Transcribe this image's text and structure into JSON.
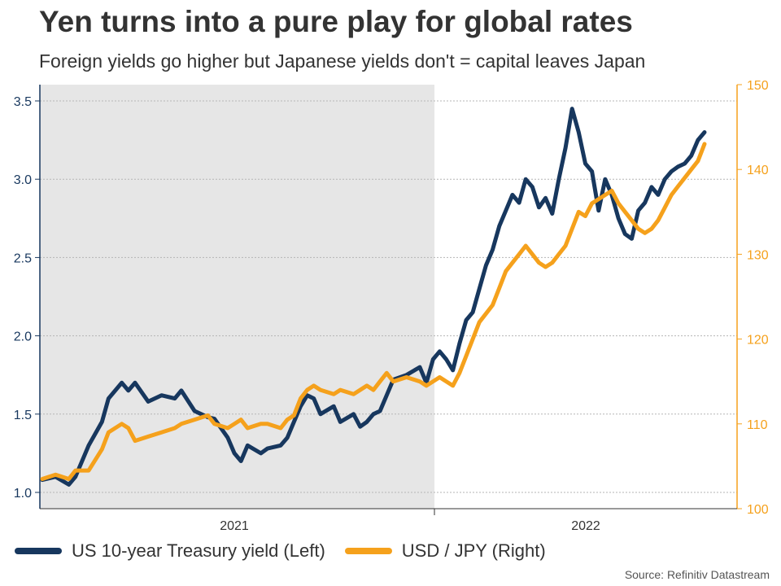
{
  "title": "Yen turns into a pure play for global rates",
  "subtitle": "Foreign yields go higher but Japanese yields don't = capital leaves Japan",
  "source": "Source: Refinitiv Datastream",
  "chart_data": {
    "type": "line",
    "title": "Yen turns into a pure play for global rates",
    "xlabel": "",
    "x_ticks": [
      "2021",
      "2022"
    ],
    "y_left": {
      "label": "US 10-year Treasury yield",
      "ylim": [
        1.0,
        3.5
      ],
      "ticks": [
        1.0,
        1.5,
        2.0,
        2.5,
        3.0,
        3.5
      ],
      "color": "#17375e"
    },
    "y_right": {
      "label": "USD / JPY",
      "ylim": [
        100,
        150
      ],
      "ticks": [
        100,
        110,
        120,
        130,
        140,
        150
      ],
      "color": "#f5a11c"
    },
    "grid": true,
    "shaded_region": {
      "from": "2020-11",
      "to": "2021-11",
      "color": "#e6e6e6"
    },
    "series": [
      {
        "name": "US 10-year Treasury yield (Left)",
        "axis": "left",
        "color": "#17375e",
        "x": [
          0.0,
          0.02,
          0.04,
          0.05,
          0.07,
          0.09,
          0.1,
          0.12,
          0.13,
          0.14,
          0.16,
          0.18,
          0.2,
          0.21,
          0.23,
          0.25,
          0.26,
          0.28,
          0.29,
          0.3,
          0.31,
          0.33,
          0.34,
          0.36,
          0.37,
          0.38,
          0.39,
          0.4,
          0.41,
          0.42,
          0.44,
          0.45,
          0.47,
          0.48,
          0.49,
          0.5,
          0.51,
          0.52,
          0.53,
          0.55,
          0.57,
          0.58,
          0.59,
          0.6,
          0.61,
          0.62,
          0.63,
          0.64,
          0.65,
          0.66,
          0.67,
          0.68,
          0.69,
          0.7,
          0.71,
          0.72,
          0.73,
          0.74,
          0.75,
          0.76,
          0.77,
          0.78,
          0.79,
          0.8,
          0.81,
          0.82,
          0.83,
          0.84,
          0.85,
          0.86,
          0.87,
          0.88,
          0.89,
          0.9,
          0.91,
          0.92,
          0.93,
          0.94,
          0.95,
          0.96,
          0.97,
          0.98,
          0.99,
          1.0
        ],
        "values": [
          1.08,
          1.1,
          1.05,
          1.1,
          1.3,
          1.45,
          1.6,
          1.7,
          1.65,
          1.7,
          1.58,
          1.62,
          1.6,
          1.65,
          1.52,
          1.48,
          1.47,
          1.35,
          1.25,
          1.2,
          1.3,
          1.25,
          1.28,
          1.3,
          1.35,
          1.45,
          1.55,
          1.62,
          1.6,
          1.5,
          1.55,
          1.45,
          1.5,
          1.42,
          1.45,
          1.5,
          1.52,
          1.62,
          1.72,
          1.75,
          1.8,
          1.7,
          1.85,
          1.9,
          1.85,
          1.78,
          1.95,
          2.1,
          2.15,
          2.3,
          2.45,
          2.55,
          2.7,
          2.8,
          2.9,
          2.85,
          3.0,
          2.95,
          2.82,
          2.88,
          2.78,
          3.0,
          3.2,
          3.45,
          3.3,
          3.1,
          3.05,
          2.8,
          3.0,
          2.9,
          2.75,
          2.65,
          2.62,
          2.8,
          2.85,
          2.95,
          2.9,
          3.0,
          3.05,
          3.08,
          3.1,
          3.15,
          3.25,
          3.3
        ]
      },
      {
        "name": "USD / JPY (Right)",
        "axis": "right",
        "color": "#f5a11c",
        "x": [
          0.0,
          0.02,
          0.04,
          0.05,
          0.07,
          0.09,
          0.1,
          0.12,
          0.13,
          0.14,
          0.16,
          0.18,
          0.2,
          0.21,
          0.23,
          0.25,
          0.26,
          0.28,
          0.29,
          0.3,
          0.31,
          0.33,
          0.34,
          0.36,
          0.37,
          0.38,
          0.39,
          0.4,
          0.41,
          0.42,
          0.44,
          0.45,
          0.47,
          0.48,
          0.49,
          0.5,
          0.51,
          0.52,
          0.53,
          0.55,
          0.57,
          0.58,
          0.59,
          0.6,
          0.61,
          0.62,
          0.63,
          0.64,
          0.65,
          0.66,
          0.67,
          0.68,
          0.69,
          0.7,
          0.71,
          0.72,
          0.73,
          0.74,
          0.75,
          0.76,
          0.77,
          0.78,
          0.79,
          0.8,
          0.81,
          0.82,
          0.83,
          0.84,
          0.85,
          0.86,
          0.87,
          0.88,
          0.89,
          0.9,
          0.91,
          0.92,
          0.93,
          0.94,
          0.95,
          0.96,
          0.97,
          0.98,
          0.99,
          1.0
        ],
        "values": [
          103.5,
          104,
          103.5,
          104.5,
          104.5,
          107,
          109,
          110,
          109.5,
          108,
          108.5,
          109,
          109.5,
          110,
          110.5,
          111,
          110,
          109.5,
          110,
          110.5,
          109.5,
          110,
          110,
          109.5,
          110.5,
          111,
          113,
          114,
          114.5,
          114,
          113.5,
          114,
          113.5,
          114,
          114.5,
          114,
          115,
          116,
          115,
          115.5,
          115,
          114.5,
          115,
          115.5,
          115,
          114.5,
          116,
          118,
          120,
          122,
          123,
          124,
          126,
          128,
          129,
          130,
          131,
          130,
          129,
          128.5,
          129,
          130,
          131,
          133,
          135,
          134.5,
          136,
          136.5,
          137,
          137.5,
          136,
          135,
          134,
          133,
          132.5,
          133,
          134,
          135.5,
          137,
          138,
          139,
          140,
          141,
          143
        ]
      }
    ]
  },
  "legend": [
    {
      "label": "US 10-year Treasury yield (Left)",
      "color": "#17375e"
    },
    {
      "label": "USD / JPY (Right)",
      "color": "#f5a11c"
    }
  ]
}
